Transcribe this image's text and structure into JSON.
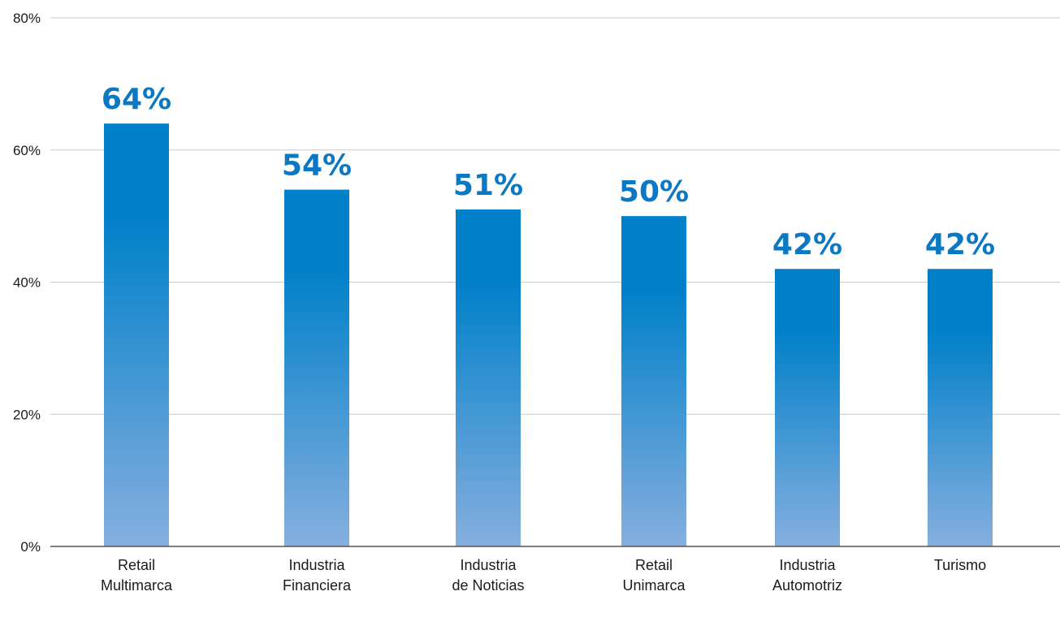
{
  "chart_data": {
    "type": "bar",
    "categories": [
      [
        "Retail",
        "Multimarca"
      ],
      [
        "Industria",
        "Financiera"
      ],
      [
        "Industria",
        "de Noticias"
      ],
      [
        "Retail",
        "Unimarca"
      ],
      [
        "Industria",
        "Automotriz"
      ],
      [
        "Turismo"
      ]
    ],
    "values": [
      64,
      54,
      51,
      50,
      42,
      42
    ],
    "data_labels": [
      "64%",
      "54%",
      "51%",
      "50%",
      "42%",
      "42%"
    ],
    "ylim": [
      0,
      80
    ],
    "yticks": [
      0,
      20,
      40,
      60,
      80
    ],
    "ytick_labels": [
      "0%",
      "20%",
      "40%",
      "60%",
      "80%"
    ],
    "grid": true,
    "legend": "none",
    "colors": {
      "bar_top": "#0080c9",
      "bar_bottom": "#86afdf",
      "label": "#0a78c2",
      "grid": "#c9c9c9",
      "axis": "#555555"
    }
  }
}
